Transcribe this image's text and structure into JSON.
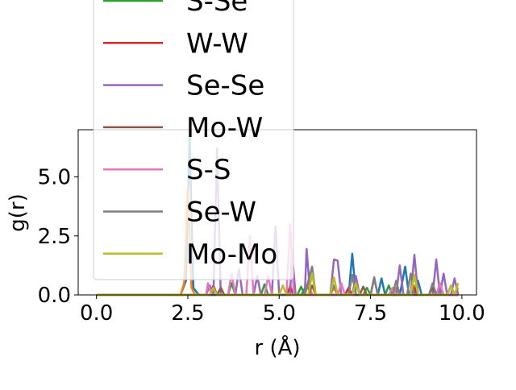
{
  "chart_data": {
    "type": "line",
    "xlabel": "r (Å)",
    "ylabel": "g(r)",
    "xlim": [
      -0.5,
      10.4
    ],
    "ylim": [
      0,
      7.0
    ],
    "x_ticks": [
      0.0,
      2.5,
      5.0,
      7.5,
      10.0
    ],
    "x_tick_labels": [
      "0.0",
      "2.5",
      "5.0",
      "7.5",
      "10.0"
    ],
    "y_ticks": [
      0.0,
      2.5,
      5.0
    ],
    "y_tick_labels": [
      "0.0",
      "2.5",
      "5.0"
    ],
    "legend_position": "top-left, overflowing above the axes",
    "grid": false,
    "legend": [
      {
        "name": "S-Se",
        "color": "#2ca02c"
      },
      {
        "name": "W-W",
        "color": "#d62728"
      },
      {
        "name": "Se-Se",
        "color": "#9467bd"
      },
      {
        "name": "Mo-W",
        "color": "#8c564b"
      },
      {
        "name": "S-S",
        "color": "#e377c2"
      },
      {
        "name": "Se-W",
        "color": "#7f7f7f"
      },
      {
        "name": "Mo-Mo",
        "color": "#bcbd22"
      }
    ],
    "series": [
      {
        "color": "#1f77b4",
        "points": [
          [
            0,
            0
          ],
          [
            2.3,
            0
          ],
          [
            2.45,
            0.6
          ],
          [
            2.55,
            6.7
          ],
          [
            2.65,
            0.3
          ],
          [
            2.8,
            0
          ],
          [
            5.6,
            0
          ],
          [
            5.75,
            0.4
          ],
          [
            5.9,
            0
          ],
          [
            6.9,
            0
          ],
          [
            7.0,
            1.75
          ],
          [
            7.1,
            0
          ],
          [
            7.7,
            0
          ],
          [
            7.8,
            0.7
          ],
          [
            7.9,
            0
          ],
          [
            8.3,
            0
          ],
          [
            8.45,
            1.2
          ],
          [
            8.55,
            0
          ],
          [
            8.7,
            0
          ],
          [
            8.8,
            0.6
          ],
          [
            8.9,
            0
          ],
          [
            9.9,
            0
          ]
        ]
      },
      {
        "color": "#ff7f0e",
        "points": [
          [
            0,
            0
          ],
          [
            2.3,
            0
          ],
          [
            2.4,
            0.5
          ],
          [
            2.5,
            4.6
          ],
          [
            2.6,
            0.3
          ],
          [
            2.7,
            0
          ],
          [
            5.2,
            0
          ],
          [
            5.3,
            0.4
          ],
          [
            5.4,
            0
          ],
          [
            5.7,
            0
          ],
          [
            5.8,
            0.5
          ],
          [
            5.9,
            0
          ],
          [
            6.4,
            0
          ],
          [
            6.5,
            0.3
          ],
          [
            6.6,
            0
          ],
          [
            8.1,
            0
          ],
          [
            8.2,
            0.3
          ],
          [
            8.3,
            0
          ],
          [
            8.6,
            0
          ],
          [
            8.7,
            0.4
          ],
          [
            8.8,
            0
          ],
          [
            9.8,
            0
          ],
          [
            9.9,
            0.3
          ]
        ]
      },
      {
        "color": "#2ca02c",
        "points": [
          [
            0,
            0
          ],
          [
            3.6,
            0
          ],
          [
            3.7,
            0.5
          ],
          [
            3.8,
            0
          ],
          [
            4.5,
            0
          ],
          [
            4.6,
            0.45
          ],
          [
            4.7,
            0
          ],
          [
            5.5,
            0
          ],
          [
            5.6,
            0.35
          ],
          [
            5.7,
            0
          ],
          [
            7.3,
            0
          ],
          [
            7.4,
            0.3
          ],
          [
            7.5,
            0
          ],
          [
            7.9,
            0
          ],
          [
            8.0,
            0.4
          ],
          [
            8.1,
            0
          ],
          [
            9.3,
            0
          ],
          [
            9.4,
            0.3
          ],
          [
            9.5,
            0
          ],
          [
            9.9,
            0
          ]
        ]
      },
      {
        "color": "#d62728",
        "points": [
          [
            0,
            0
          ],
          [
            3.1,
            0
          ],
          [
            3.2,
            0.4
          ],
          [
            3.3,
            0
          ],
          [
            5.2,
            0
          ],
          [
            5.3,
            0.3
          ],
          [
            5.4,
            0
          ],
          [
            6.8,
            0
          ],
          [
            6.9,
            0.3
          ],
          [
            7.0,
            0
          ],
          [
            8.6,
            0
          ],
          [
            8.7,
            0.3
          ],
          [
            8.8,
            0
          ],
          [
            9.9,
            0
          ]
        ]
      },
      {
        "color": "#9467bd",
        "points": [
          [
            0,
            0
          ],
          [
            3.0,
            0
          ],
          [
            3.1,
            0.4
          ],
          [
            3.2,
            0
          ],
          [
            3.3,
            6.2
          ],
          [
            3.4,
            0
          ],
          [
            3.8,
            0
          ],
          [
            3.9,
            1.1
          ],
          [
            4.0,
            0
          ],
          [
            4.3,
            0
          ],
          [
            4.4,
            0.8
          ],
          [
            4.5,
            0
          ],
          [
            4.8,
            0
          ],
          [
            4.9,
            2.9
          ],
          [
            5.0,
            0
          ],
          [
            5.3,
            0
          ],
          [
            5.35,
            1.8
          ],
          [
            5.45,
            0
          ],
          [
            5.7,
            0
          ],
          [
            5.75,
            1.95
          ],
          [
            5.85,
            0
          ],
          [
            6.4,
            0
          ],
          [
            6.5,
            1.5
          ],
          [
            6.6,
            1.45
          ],
          [
            6.7,
            0
          ],
          [
            7.0,
            0
          ],
          [
            7.1,
            0.8
          ],
          [
            7.2,
            0
          ],
          [
            7.5,
            0
          ],
          [
            7.6,
            0.7
          ],
          [
            7.7,
            0
          ],
          [
            8.2,
            0
          ],
          [
            8.3,
            1.25
          ],
          [
            8.4,
            0
          ],
          [
            8.6,
            0
          ],
          [
            8.7,
            1.7
          ],
          [
            8.8,
            0
          ],
          [
            9.2,
            0
          ],
          [
            9.3,
            1.5
          ],
          [
            9.4,
            0
          ],
          [
            9.5,
            0.9
          ],
          [
            9.6,
            0
          ],
          [
            9.7,
            0
          ],
          [
            9.8,
            0.7
          ],
          [
            9.9,
            0
          ]
        ]
      },
      {
        "color": "#8c564b",
        "points": [
          [
            0,
            0
          ],
          [
            3.3,
            0
          ],
          [
            3.4,
            0.3
          ],
          [
            3.5,
            0
          ],
          [
            5.8,
            0
          ],
          [
            5.9,
            0.4
          ],
          [
            6.0,
            0
          ],
          [
            7.2,
            0
          ],
          [
            7.3,
            0.35
          ],
          [
            7.4,
            0
          ],
          [
            9.1,
            0
          ],
          [
            9.2,
            0.3
          ],
          [
            9.3,
            0
          ],
          [
            9.9,
            0
          ]
        ]
      },
      {
        "color": "#e377c2",
        "points": [
          [
            0,
            0
          ],
          [
            3.0,
            0
          ],
          [
            3.05,
            0.5
          ],
          [
            3.15,
            0
          ],
          [
            3.6,
            0
          ],
          [
            3.7,
            0.9
          ],
          [
            3.8,
            0
          ],
          [
            4.1,
            0
          ],
          [
            4.2,
            2.5
          ],
          [
            4.3,
            0
          ],
          [
            4.6,
            0
          ],
          [
            4.7,
            0.8
          ],
          [
            4.8,
            0
          ],
          [
            5.2,
            0
          ],
          [
            5.3,
            3.0
          ],
          [
            5.4,
            0
          ],
          [
            6.6,
            0
          ],
          [
            6.7,
            0.5
          ],
          [
            6.8,
            0
          ],
          [
            8.0,
            0
          ],
          [
            8.1,
            0.3
          ],
          [
            8.2,
            0
          ],
          [
            9.3,
            0
          ],
          [
            9.4,
            0.5
          ],
          [
            9.5,
            0
          ],
          [
            9.9,
            0
          ]
        ]
      },
      {
        "color": "#7f7f7f",
        "points": [
          [
            0,
            0
          ],
          [
            5.7,
            0
          ],
          [
            5.8,
            0.6
          ],
          [
            5.9,
            1.2
          ],
          [
            6.0,
            0
          ],
          [
            6.4,
            0
          ],
          [
            6.5,
            0.4
          ],
          [
            6.6,
            0
          ],
          [
            6.9,
            0
          ],
          [
            7.0,
            0.85
          ],
          [
            7.1,
            0
          ],
          [
            7.5,
            0
          ],
          [
            7.6,
            0.75
          ],
          [
            7.7,
            0
          ],
          [
            8.1,
            0
          ],
          [
            8.2,
            0.6
          ],
          [
            8.3,
            0
          ],
          [
            8.5,
            0
          ],
          [
            8.6,
            0.9
          ],
          [
            8.7,
            0
          ],
          [
            9.1,
            0
          ],
          [
            9.2,
            0.5
          ],
          [
            9.3,
            0
          ],
          [
            9.6,
            0
          ],
          [
            9.7,
            0.4
          ],
          [
            9.8,
            0
          ]
        ]
      },
      {
        "color": "#bcbd22",
        "points": [
          [
            0,
            0
          ],
          [
            3.1,
            0
          ],
          [
            3.2,
            0.3
          ],
          [
            3.3,
            0
          ],
          [
            5.0,
            0
          ],
          [
            5.1,
            0.4
          ],
          [
            5.2,
            0
          ],
          [
            5.8,
            0
          ],
          [
            5.9,
            0.9
          ],
          [
            6.0,
            0
          ],
          [
            6.4,
            0
          ],
          [
            6.5,
            0.75
          ],
          [
            6.6,
            0
          ],
          [
            7.0,
            0
          ],
          [
            7.1,
            0.5
          ],
          [
            7.2,
            0
          ],
          [
            8.6,
            0
          ],
          [
            8.7,
            0.85
          ],
          [
            8.8,
            0
          ],
          [
            9.6,
            0
          ],
          [
            9.7,
            0.4
          ],
          [
            9.8,
            0
          ],
          [
            9.9,
            0.5
          ]
        ]
      }
    ]
  }
}
